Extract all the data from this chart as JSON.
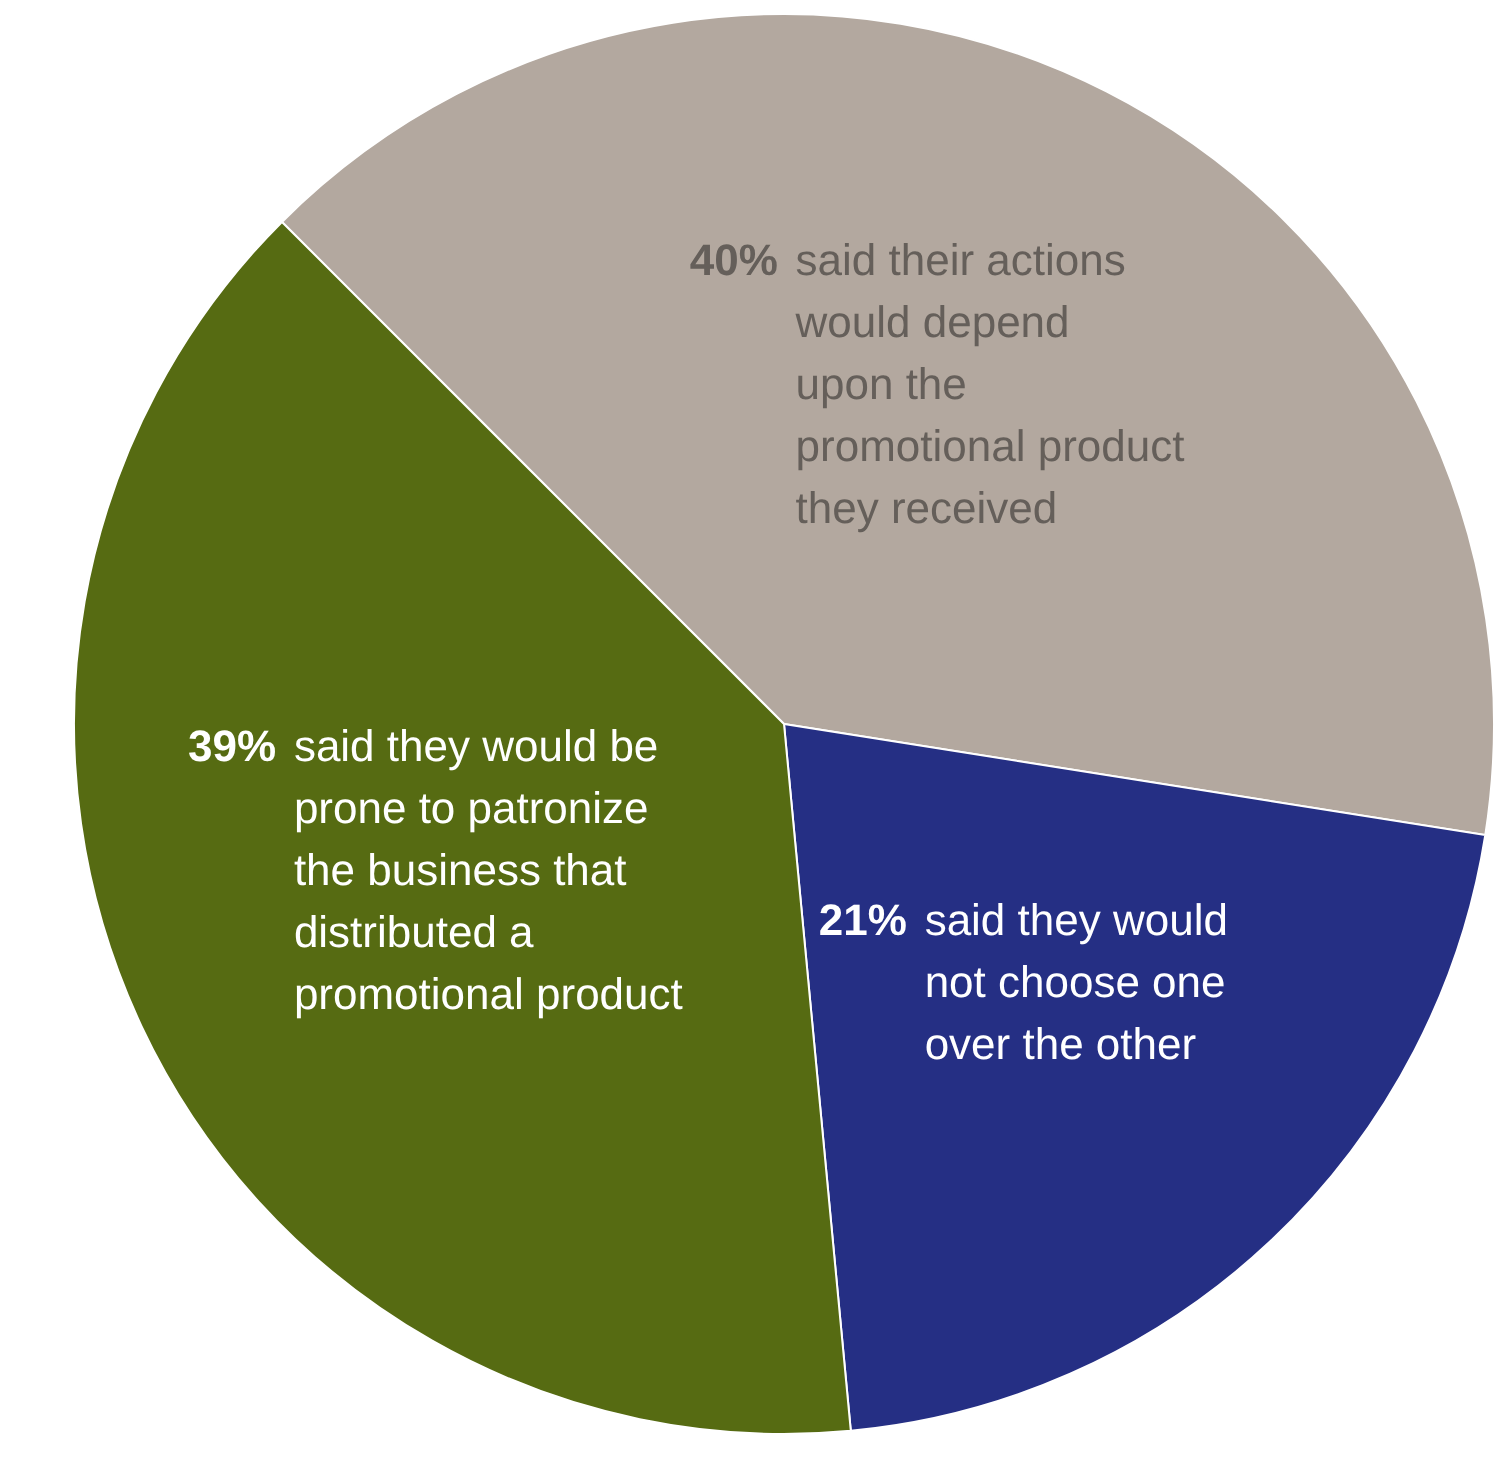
{
  "chart_data": {
    "type": "pie",
    "categories": [
      "said their actions\nwould depend\nupon the\npromotional product\nthey received",
      "said they would\nnot choose one\nover the other",
      "said they would be\nprone to patronize\nthe business that\ndistributed a\npromotional product"
    ],
    "values": [
      40,
      21,
      39
    ],
    "value_labels": [
      "40%",
      "21%",
      "39%"
    ],
    "colors": [
      "#b3a89f",
      "#252f84",
      "#566b12"
    ]
  }
}
